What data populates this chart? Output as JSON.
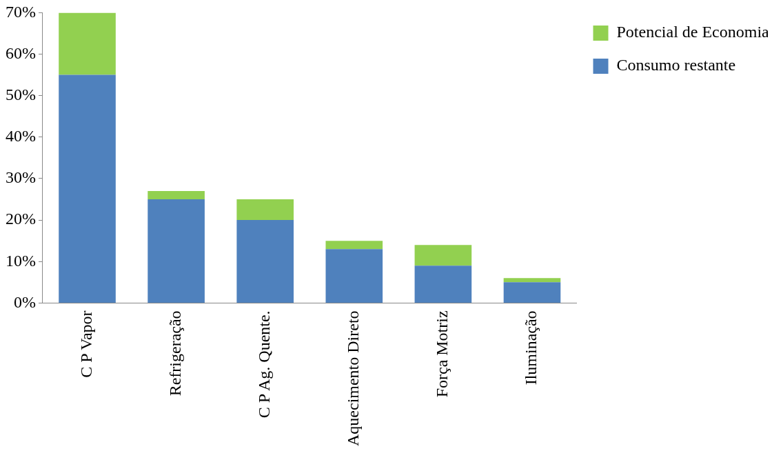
{
  "chart_data": {
    "type": "bar",
    "stacked": true,
    "categories": [
      "C P Vapor",
      "Refrigeração",
      "C P Ag. Quente.",
      "Aquecimento Direto",
      "Força Motriz",
      "Iluminação"
    ],
    "series": [
      {
        "name": "Consumo restante",
        "color": "#4f81bd",
        "values": [
          55,
          25,
          20,
          13,
          9,
          5
        ]
      },
      {
        "name": "Potencial de Economia",
        "color": "#92d050",
        "values": [
          15,
          2,
          5,
          2,
          5,
          1
        ]
      }
    ],
    "ylim": [
      0,
      70
    ],
    "yticks": [
      {
        "value": 0,
        "label": "0%"
      },
      {
        "value": 10,
        "label": "10%"
      },
      {
        "value": 20,
        "label": "20%"
      },
      {
        "value": 30,
        "label": "30%"
      },
      {
        "value": 40,
        "label": "40%"
      },
      {
        "value": 50,
        "label": "50%"
      },
      {
        "value": 60,
        "label": "60%"
      },
      {
        "value": 70,
        "label": "70%"
      }
    ],
    "grid": false,
    "legend": "top right"
  }
}
